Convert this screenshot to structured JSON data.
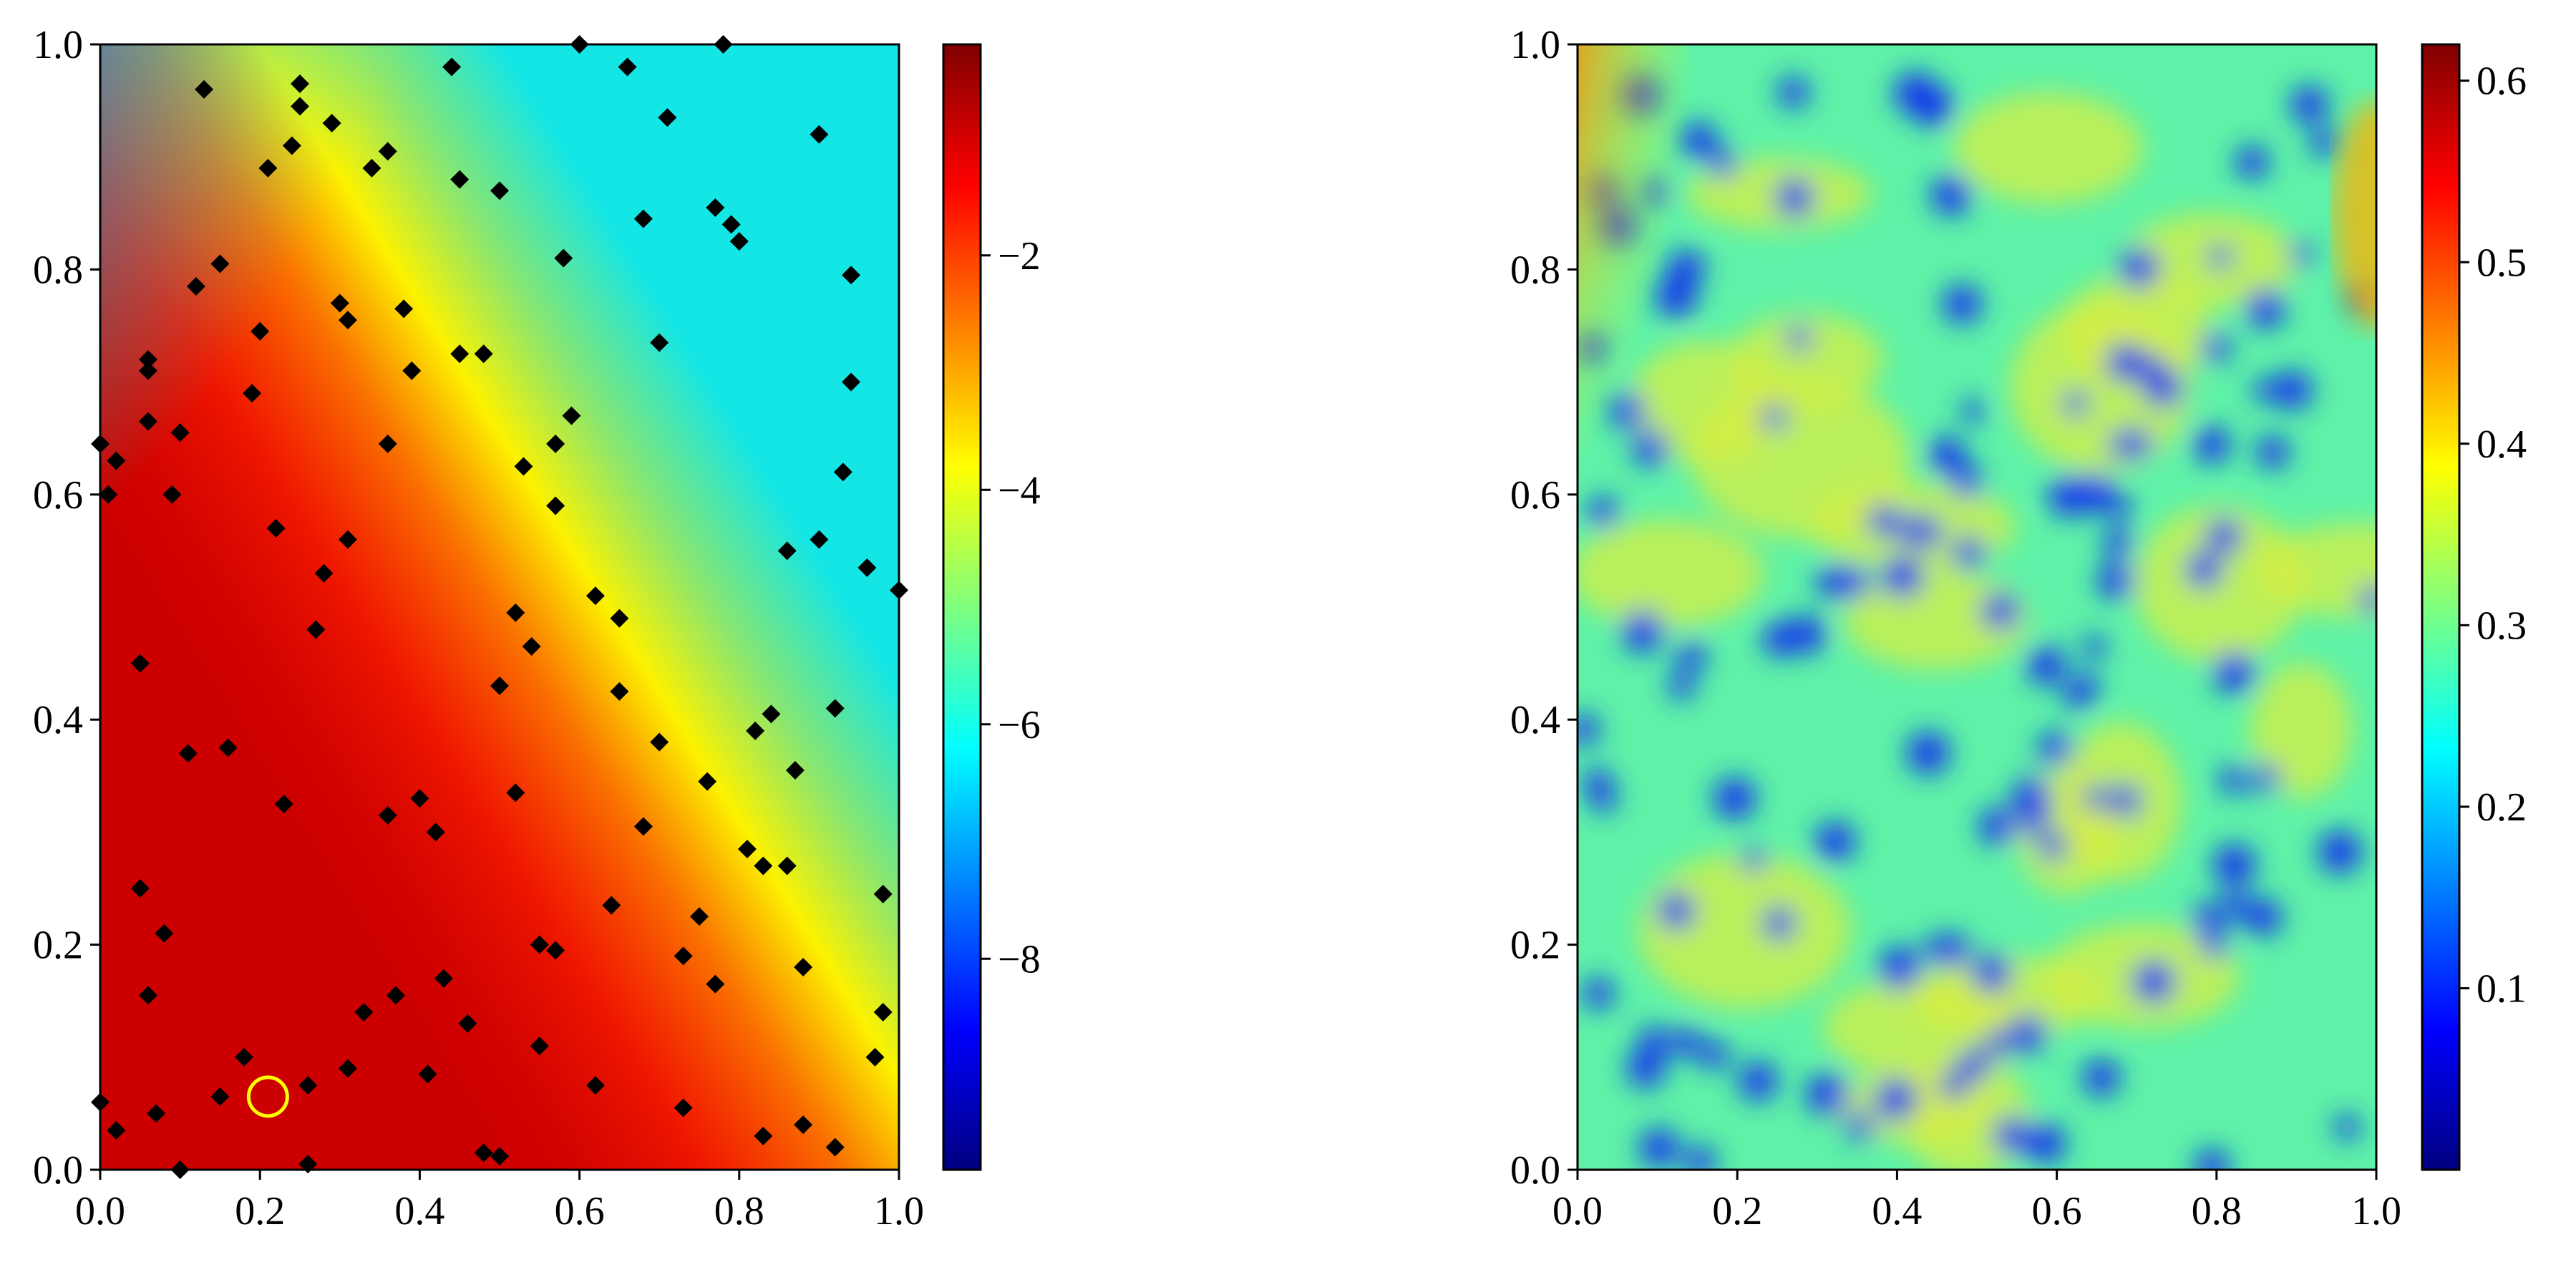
{
  "colors": {
    "jet": [
      "#00007f",
      "#0000ff",
      "#007fff",
      "#00ffff",
      "#7fff7f",
      "#ffff00",
      "#ff7f00",
      "#ff0000",
      "#7f0000"
    ],
    "marker": "#000000",
    "highlight": "#ffff00"
  },
  "chart_data": [
    {
      "type": "heatmap",
      "xlim": [
        0,
        1
      ],
      "ylim": [
        0,
        1
      ],
      "x_ticks": [
        "0.0",
        "0.2",
        "0.4",
        "0.6",
        "0.8",
        "1.0"
      ],
      "y_ticks": [
        "0.0",
        "0.2",
        "0.4",
        "0.6",
        "0.8",
        "1.0"
      ],
      "colorbar": {
        "range": [
          -9.8,
          -0.2
        ],
        "ticks": [
          -2,
          -4,
          -6,
          -8
        ],
        "tick_labels": [
          "−2",
          "−4",
          "−6",
          "−8"
        ]
      },
      "grid": false,
      "highlight_point": [
        0.21,
        0.065
      ],
      "sample_points": [
        [
          0.13,
          0.96
        ],
        [
          0.25,
          0.965
        ],
        [
          0.25,
          0.945
        ],
        [
          0.24,
          0.91
        ],
        [
          0.29,
          0.93
        ],
        [
          0.44,
          0.98
        ],
        [
          0.6,
          1.0
        ],
        [
          0.66,
          0.98
        ],
        [
          0.78,
          1.0
        ],
        [
          0.21,
          0.89
        ],
        [
          0.36,
          0.905
        ],
        [
          0.34,
          0.89
        ],
        [
          0.45,
          0.88
        ],
        [
          0.5,
          0.87
        ],
        [
          0.71,
          0.935
        ],
        [
          0.9,
          0.92
        ],
        [
          0.77,
          0.855
        ],
        [
          0.79,
          0.84
        ],
        [
          0.8,
          0.825
        ],
        [
          0.68,
          0.845
        ],
        [
          0.58,
          0.81
        ],
        [
          0.15,
          0.805
        ],
        [
          0.12,
          0.785
        ],
        [
          0.94,
          0.795
        ],
        [
          0.3,
          0.77
        ],
        [
          0.31,
          0.755
        ],
        [
          0.38,
          0.765
        ],
        [
          0.2,
          0.745
        ],
        [
          0.06,
          0.72
        ],
        [
          0.06,
          0.71
        ],
        [
          0.45,
          0.725
        ],
        [
          0.48,
          0.725
        ],
        [
          0.7,
          0.735
        ],
        [
          0.19,
          0.69
        ],
        [
          0.39,
          0.71
        ],
        [
          0.94,
          0.7
        ],
        [
          0.06,
          0.665
        ],
        [
          0.1,
          0.655
        ],
        [
          0.0,
          0.645
        ],
        [
          0.02,
          0.63
        ],
        [
          0.36,
          0.645
        ],
        [
          0.59,
          0.67
        ],
        [
          0.57,
          0.645
        ],
        [
          0.01,
          0.6
        ],
        [
          0.09,
          0.6
        ],
        [
          0.53,
          0.625
        ],
        [
          0.57,
          0.59
        ],
        [
          0.93,
          0.62
        ],
        [
          0.22,
          0.57
        ],
        [
          0.31,
          0.56
        ],
        [
          0.9,
          0.56
        ],
        [
          0.86,
          0.55
        ],
        [
          0.96,
          0.535
        ],
        [
          0.28,
          0.53
        ],
        [
          0.62,
          0.51
        ],
        [
          0.65,
          0.49
        ],
        [
          0.52,
          0.495
        ],
        [
          1.0,
          0.515
        ],
        [
          0.27,
          0.48
        ],
        [
          0.54,
          0.465
        ],
        [
          0.05,
          0.45
        ],
        [
          0.5,
          0.43
        ],
        [
          0.65,
          0.425
        ],
        [
          0.84,
          0.405
        ],
        [
          0.82,
          0.39
        ],
        [
          0.92,
          0.41
        ],
        [
          0.11,
          0.37
        ],
        [
          0.16,
          0.375
        ],
        [
          0.7,
          0.38
        ],
        [
          0.87,
          0.355
        ],
        [
          0.76,
          0.345
        ],
        [
          0.4,
          0.33
        ],
        [
          0.52,
          0.335
        ],
        [
          0.36,
          0.315
        ],
        [
          0.42,
          0.3
        ],
        [
          0.23,
          0.325
        ],
        [
          0.68,
          0.305
        ],
        [
          0.81,
          0.285
        ],
        [
          0.83,
          0.27
        ],
        [
          0.86,
          0.27
        ],
        [
          0.05,
          0.25
        ],
        [
          0.64,
          0.235
        ],
        [
          0.98,
          0.245
        ],
        [
          0.08,
          0.21
        ],
        [
          0.55,
          0.2
        ],
        [
          0.57,
          0.195
        ],
        [
          0.75,
          0.225
        ],
        [
          0.73,
          0.19
        ],
        [
          0.77,
          0.165
        ],
        [
          0.43,
          0.17
        ],
        [
          0.06,
          0.155
        ],
        [
          0.37,
          0.155
        ],
        [
          0.33,
          0.14
        ],
        [
          0.46,
          0.13
        ],
        [
          0.55,
          0.11
        ],
        [
          0.88,
          0.18
        ],
        [
          0.98,
          0.14
        ],
        [
          0.18,
          0.1
        ],
        [
          0.31,
          0.09
        ],
        [
          0.41,
          0.085
        ],
        [
          0.26,
          0.075
        ],
        [
          0.62,
          0.075
        ],
        [
          0.15,
          0.065
        ],
        [
          0.97,
          0.1
        ],
        [
          0.0,
          0.06
        ],
        [
          0.07,
          0.05
        ],
        [
          0.73,
          0.055
        ],
        [
          0.02,
          0.035
        ],
        [
          0.83,
          0.03
        ],
        [
          0.88,
          0.04
        ],
        [
          0.92,
          0.02
        ],
        [
          0.1,
          0.0
        ],
        [
          0.26,
          0.005
        ],
        [
          0.48,
          0.015
        ],
        [
          0.5,
          0.012
        ]
      ]
    },
    {
      "type": "heatmap",
      "xlim": [
        0,
        1
      ],
      "ylim": [
        0,
        1
      ],
      "x_ticks": [
        "0.0",
        "0.2",
        "0.4",
        "0.6",
        "0.8",
        "1.0"
      ],
      "y_ticks": [
        "0.0",
        "0.2",
        "0.4",
        "0.6",
        "0.8",
        "1.0"
      ],
      "colorbar": {
        "range": [
          0.0,
          0.62
        ],
        "ticks": [
          0.1,
          0.2,
          0.3,
          0.4,
          0.5,
          0.6
        ],
        "tick_labels": [
          "0.1",
          "0.2",
          "0.3",
          "0.4",
          "0.5",
          "0.6"
        ]
      },
      "grid": false
    }
  ]
}
